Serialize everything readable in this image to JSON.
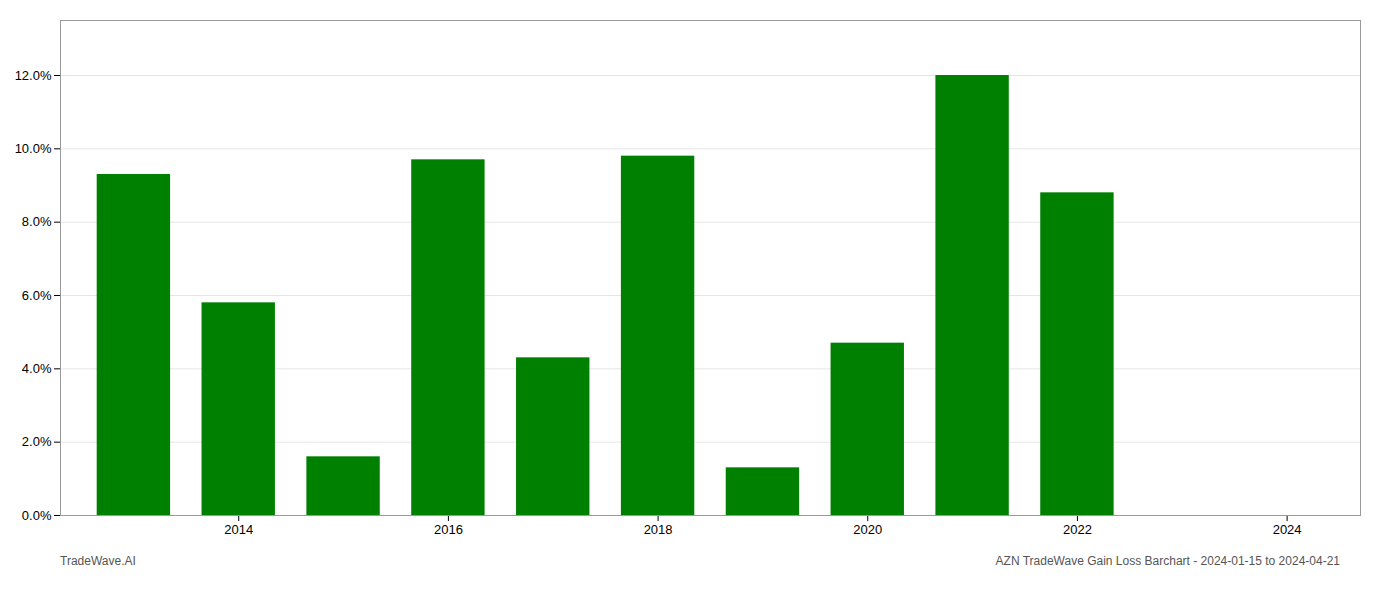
{
  "chart_data": {
    "type": "bar",
    "x": [
      2013,
      2014,
      2015,
      2016,
      2017,
      2018,
      2019,
      2020,
      2021,
      2022,
      2023
    ],
    "values": [
      0.093,
      0.058,
      0.016,
      0.097,
      0.043,
      0.098,
      0.013,
      0.047,
      0.12,
      0.088,
      0.0
    ],
    "color": "#008000",
    "xlim": [
      2012.3,
      2024.7
    ],
    "xticks": [
      2014,
      2016,
      2018,
      2020,
      2022,
      2024
    ],
    "ylim": [
      0,
      0.135
    ],
    "yticks": [
      {
        "value": 0.0,
        "label": "0.0%"
      },
      {
        "value": 0.02,
        "label": "2.0%"
      },
      {
        "value": 0.04,
        "label": "4.0%"
      },
      {
        "value": 0.06,
        "label": "6.0%"
      },
      {
        "value": 0.08,
        "label": "8.0%"
      },
      {
        "value": 0.1,
        "label": "10.0%"
      },
      {
        "value": 0.12,
        "label": "12.0%"
      }
    ],
    "grid": true,
    "annotations": [
      "TradeWave.AI",
      "AZN TradeWave Gain Loss Barchart - 2024-01-15 to 2024-04-21"
    ]
  }
}
